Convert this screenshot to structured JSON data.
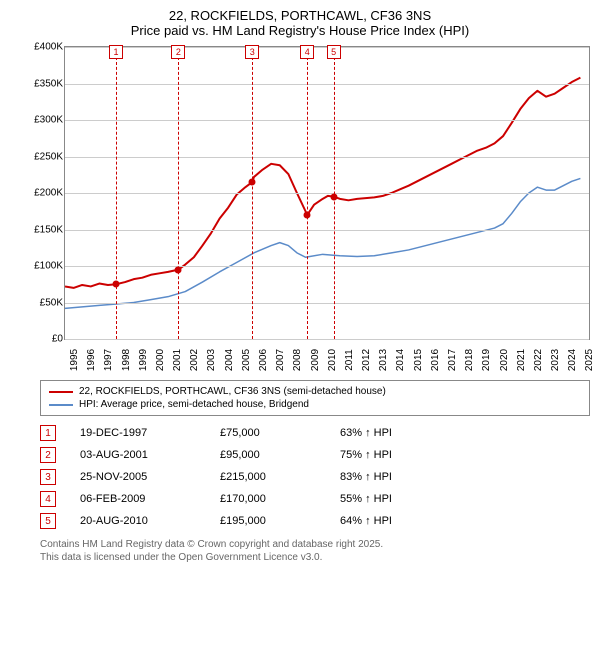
{
  "title": {
    "line1": "22, ROCKFIELDS, PORTHCAWL, CF36 3NS",
    "line2": "Price paid vs. HM Land Registry's House Price Index (HPI)"
  },
  "chart": {
    "type": "line",
    "xlim": [
      1995,
      2025.5
    ],
    "ylim": [
      0,
      400
    ],
    "ytick_step": 50,
    "ytick_labels": [
      "£0",
      "£50K",
      "£100K",
      "£150K",
      "£200K",
      "£250K",
      "£300K",
      "£350K",
      "£400K"
    ],
    "xticks": [
      1995,
      1996,
      1997,
      1998,
      1999,
      2000,
      2001,
      2002,
      2003,
      2004,
      2005,
      2006,
      2007,
      2008,
      2009,
      2010,
      2011,
      2012,
      2013,
      2014,
      2015,
      2016,
      2017,
      2018,
      2019,
      2020,
      2021,
      2022,
      2023,
      2024,
      2025
    ],
    "grid_color": "#cccccc",
    "axis_color": "#888888",
    "background_color": "#ffffff",
    "series": [
      {
        "name": "22, ROCKFIELDS, PORTHCAWL, CF36 3NS (semi-detached house)",
        "color": "#cc0000",
        "width": 2,
        "data": [
          [
            1995,
            72
          ],
          [
            1995.5,
            70
          ],
          [
            1996,
            74
          ],
          [
            1996.5,
            72
          ],
          [
            1997,
            76
          ],
          [
            1997.5,
            74
          ],
          [
            1997.97,
            75
          ],
          [
            1998.5,
            78
          ],
          [
            1999,
            82
          ],
          [
            1999.5,
            84
          ],
          [
            2000,
            88
          ],
          [
            2000.5,
            90
          ],
          [
            2001,
            92
          ],
          [
            2001.6,
            95
          ],
          [
            2002,
            102
          ],
          [
            2002.5,
            112
          ],
          [
            2003,
            128
          ],
          [
            2003.5,
            145
          ],
          [
            2004,
            165
          ],
          [
            2004.5,
            180
          ],
          [
            2005,
            198
          ],
          [
            2005.5,
            208
          ],
          [
            2005.9,
            215
          ],
          [
            2006,
            222
          ],
          [
            2006.5,
            232
          ],
          [
            2007,
            240
          ],
          [
            2007.5,
            238
          ],
          [
            2008,
            226
          ],
          [
            2008.5,
            200
          ],
          [
            2009,
            175
          ],
          [
            2009.1,
            170
          ],
          [
            2009.5,
            184
          ],
          [
            2010,
            192
          ],
          [
            2010.3,
            196
          ],
          [
            2010.64,
            195
          ],
          [
            2011,
            192
          ],
          [
            2011.5,
            190
          ],
          [
            2012,
            192
          ],
          [
            2012.5,
            193
          ],
          [
            2013,
            194
          ],
          [
            2013.5,
            196
          ],
          [
            2014,
            200
          ],
          [
            2014.5,
            205
          ],
          [
            2015,
            210
          ],
          [
            2015.5,
            216
          ],
          [
            2016,
            222
          ],
          [
            2016.5,
            228
          ],
          [
            2017,
            234
          ],
          [
            2017.5,
            240
          ],
          [
            2018,
            246
          ],
          [
            2018.5,
            252
          ],
          [
            2019,
            258
          ],
          [
            2019.5,
            262
          ],
          [
            2020,
            268
          ],
          [
            2020.5,
            278
          ],
          [
            2021,
            296
          ],
          [
            2021.5,
            315
          ],
          [
            2022,
            330
          ],
          [
            2022.5,
            340
          ],
          [
            2023,
            332
          ],
          [
            2023.5,
            336
          ],
          [
            2024,
            344
          ],
          [
            2024.5,
            352
          ],
          [
            2025,
            358
          ]
        ]
      },
      {
        "name": "HPI: Average price, semi-detached house, Bridgend",
        "color": "#5b8bc9",
        "width": 1.5,
        "data": [
          [
            1995,
            42
          ],
          [
            1996,
            44
          ],
          [
            1997,
            46
          ],
          [
            1998,
            48
          ],
          [
            1999,
            50
          ],
          [
            2000,
            54
          ],
          [
            2001,
            58
          ],
          [
            2002,
            65
          ],
          [
            2003,
            78
          ],
          [
            2004,
            92
          ],
          [
            2005,
            105
          ],
          [
            2006,
            118
          ],
          [
            2007,
            128
          ],
          [
            2007.5,
            132
          ],
          [
            2008,
            128
          ],
          [
            2008.5,
            118
          ],
          [
            2009,
            112
          ],
          [
            2010,
            116
          ],
          [
            2011,
            114
          ],
          [
            2012,
            113
          ],
          [
            2013,
            114
          ],
          [
            2014,
            118
          ],
          [
            2015,
            122
          ],
          [
            2016,
            128
          ],
          [
            2017,
            134
          ],
          [
            2018,
            140
          ],
          [
            2019,
            146
          ],
          [
            2020,
            152
          ],
          [
            2020.5,
            158
          ],
          [
            2021,
            172
          ],
          [
            2021.5,
            188
          ],
          [
            2022,
            200
          ],
          [
            2022.5,
            208
          ],
          [
            2023,
            204
          ],
          [
            2023.5,
            204
          ],
          [
            2024,
            210
          ],
          [
            2024.5,
            216
          ],
          [
            2025,
            220
          ]
        ]
      }
    ],
    "sale_points": [
      {
        "x": 1997.97,
        "y": 75,
        "color": "#cc0000"
      },
      {
        "x": 2001.6,
        "y": 95,
        "color": "#cc0000"
      },
      {
        "x": 2005.9,
        "y": 215,
        "color": "#cc0000"
      },
      {
        "x": 2009.1,
        "y": 170,
        "color": "#cc0000"
      },
      {
        "x": 2010.64,
        "y": 195,
        "color": "#cc0000"
      }
    ],
    "vmarkers": [
      {
        "n": "1",
        "x": 1997.97
      },
      {
        "n": "2",
        "x": 2001.6
      },
      {
        "n": "3",
        "x": 2005.9
      },
      {
        "n": "4",
        "x": 2009.1
      },
      {
        "n": "5",
        "x": 2010.64
      }
    ],
    "marker_color": "#cc0000"
  },
  "legend": [
    {
      "color": "#cc0000",
      "label": "22, ROCKFIELDS, PORTHCAWL, CF36 3NS (semi-detached house)"
    },
    {
      "color": "#5b8bc9",
      "label": "HPI: Average price, semi-detached house, Bridgend"
    }
  ],
  "markers_table": [
    {
      "n": "1",
      "date": "19-DEC-1997",
      "price": "£75,000",
      "delta": "63% ↑ HPI"
    },
    {
      "n": "2",
      "date": "03-AUG-2001",
      "price": "£95,000",
      "delta": "75% ↑ HPI"
    },
    {
      "n": "3",
      "date": "25-NOV-2005",
      "price": "£215,000",
      "delta": "83% ↑ HPI"
    },
    {
      "n": "4",
      "date": "06-FEB-2009",
      "price": "£170,000",
      "delta": "55% ↑ HPI"
    },
    {
      "n": "5",
      "date": "20-AUG-2010",
      "price": "£195,000",
      "delta": "64% ↑ HPI"
    }
  ],
  "footer": {
    "line1": "Contains HM Land Registry data © Crown copyright and database right 2025.",
    "line2": "This data is licensed under the Open Government Licence v3.0."
  }
}
